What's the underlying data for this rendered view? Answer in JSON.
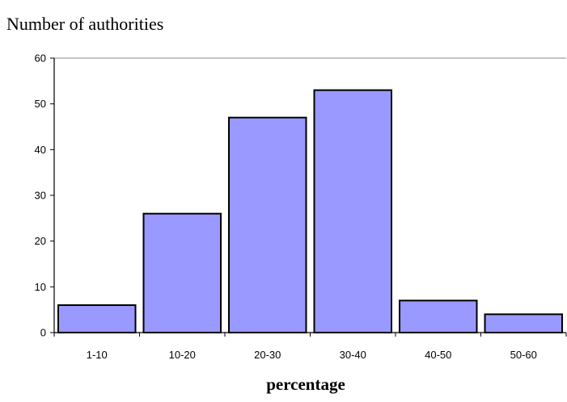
{
  "chart_data": {
    "type": "bar",
    "title": "",
    "ylabel": "Number of authorities",
    "xlabel": "percentage",
    "categories": [
      "1-10",
      "10-20",
      "20-30",
      "30-40",
      "40-50",
      "50-60"
    ],
    "values": [
      6,
      26,
      47,
      53,
      7,
      4
    ],
    "ylim": [
      0,
      60
    ],
    "yticks": [
      "0",
      "10",
      "20",
      "30",
      "40",
      "50",
      "60"
    ],
    "grid": false,
    "legend": "none",
    "bar_color": "#9999ff",
    "bar_edge_color": "#000000"
  }
}
